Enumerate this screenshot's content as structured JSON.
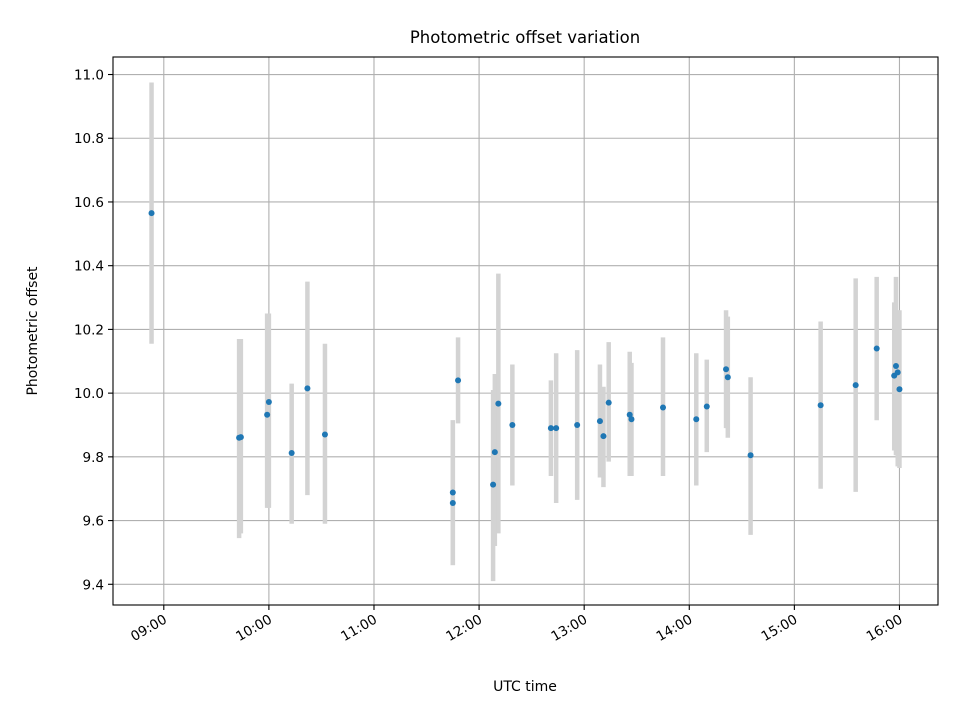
{
  "chart_data": {
    "type": "scatter",
    "title": "Photometric offset variation",
    "xlabel": "UTC time",
    "ylabel": "Photometric offset",
    "x_ticks": [
      "09:00",
      "10:00",
      "11:00",
      "12:00",
      "13:00",
      "14:00",
      "15:00",
      "16:00"
    ],
    "y_ticks": [
      "9.4",
      "9.6",
      "9.8",
      "10.0",
      "10.2",
      "10.4",
      "10.6",
      "10.8",
      "11.0"
    ],
    "xlim": [
      "08:31",
      "16:22"
    ],
    "ylim": [
      9.335,
      11.055
    ],
    "grid": true,
    "point_color": "#1f77b4",
    "errorbar_color": "#d3d3d3",
    "series": [
      {
        "points": [
          {
            "x": "08:53",
            "y": 10.565,
            "err_low": 10.155,
            "err_high": 10.975
          },
          {
            "x": "09:43",
            "y": 9.86,
            "err_low": 9.545,
            "err_high": 10.17
          },
          {
            "x": "09:44",
            "y": 9.862,
            "err_low": 9.56,
            "err_high": 10.17
          },
          {
            "x": "09:59",
            "y": 9.932,
            "err_low": 9.64,
            "err_high": 10.25
          },
          {
            "x": "10:00",
            "y": 9.972,
            "err_low": 9.64,
            "err_high": 10.25
          },
          {
            "x": "10:13",
            "y": 9.812,
            "err_low": 9.59,
            "err_high": 10.03
          },
          {
            "x": "10:22",
            "y": 10.015,
            "err_low": 9.68,
            "err_high": 10.35
          },
          {
            "x": "10:32",
            "y": 9.87,
            "err_low": 9.59,
            "err_high": 10.155
          },
          {
            "x": "11:45",
            "y": 9.655,
            "err_low": 9.46,
            "err_high": 9.915
          },
          {
            "x": "11:45",
            "y": 9.688,
            "err_low": 9.46,
            "err_high": 9.915
          },
          {
            "x": "11:48",
            "y": 10.04,
            "err_low": 9.905,
            "err_high": 10.175
          },
          {
            "x": "12:08",
            "y": 9.713,
            "err_low": 9.41,
            "err_high": 10.01
          },
          {
            "x": "12:09",
            "y": 9.815,
            "err_low": 9.52,
            "err_high": 10.06
          },
          {
            "x": "12:11",
            "y": 9.967,
            "err_low": 9.56,
            "err_high": 10.375
          },
          {
            "x": "12:19",
            "y": 9.9,
            "err_low": 9.71,
            "err_high": 10.09
          },
          {
            "x": "12:41",
            "y": 9.89,
            "err_low": 9.74,
            "err_high": 10.04
          },
          {
            "x": "12:44",
            "y": 9.89,
            "err_low": 9.655,
            "err_high": 10.125
          },
          {
            "x": "12:56",
            "y": 9.9,
            "err_low": 9.665,
            "err_high": 10.135
          },
          {
            "x": "13:09",
            "y": 9.912,
            "err_low": 9.735,
            "err_high": 10.09
          },
          {
            "x": "13:11",
            "y": 9.865,
            "err_low": 9.705,
            "err_high": 10.02
          },
          {
            "x": "13:14",
            "y": 9.97,
            "err_low": 9.785,
            "err_high": 10.16
          },
          {
            "x": "13:26",
            "y": 9.932,
            "err_low": 9.74,
            "err_high": 10.13
          },
          {
            "x": "13:27",
            "y": 9.918,
            "err_low": 9.74,
            "err_high": 10.095
          },
          {
            "x": "13:45",
            "y": 9.955,
            "err_low": 9.74,
            "err_high": 10.175
          },
          {
            "x": "14:04",
            "y": 9.918,
            "err_low": 9.71,
            "err_high": 10.125
          },
          {
            "x": "14:10",
            "y": 9.958,
            "err_low": 9.815,
            "err_high": 10.105
          },
          {
            "x": "14:21",
            "y": 10.075,
            "err_low": 9.89,
            "err_high": 10.26
          },
          {
            "x": "14:22",
            "y": 10.05,
            "err_low": 9.86,
            "err_high": 10.24
          },
          {
            "x": "14:35",
            "y": 9.805,
            "err_low": 9.555,
            "err_high": 10.05
          },
          {
            "x": "15:15",
            "y": 9.962,
            "err_low": 9.7,
            "err_high": 10.225
          },
          {
            "x": "15:35",
            "y": 10.025,
            "err_low": 9.69,
            "err_high": 10.36
          },
          {
            "x": "15:47",
            "y": 10.14,
            "err_low": 9.915,
            "err_high": 10.365
          },
          {
            "x": "15:57",
            "y": 10.055,
            "err_low": 9.82,
            "err_high": 10.285
          },
          {
            "x": "15:58",
            "y": 10.085,
            "err_low": 9.805,
            "err_high": 10.365
          },
          {
            "x": "15:59",
            "y": 10.065,
            "err_low": 9.77,
            "err_high": 10.26
          },
          {
            "x": "16:00",
            "y": 10.012,
            "err_low": 9.765,
            "err_high": 10.26
          }
        ]
      }
    ]
  }
}
